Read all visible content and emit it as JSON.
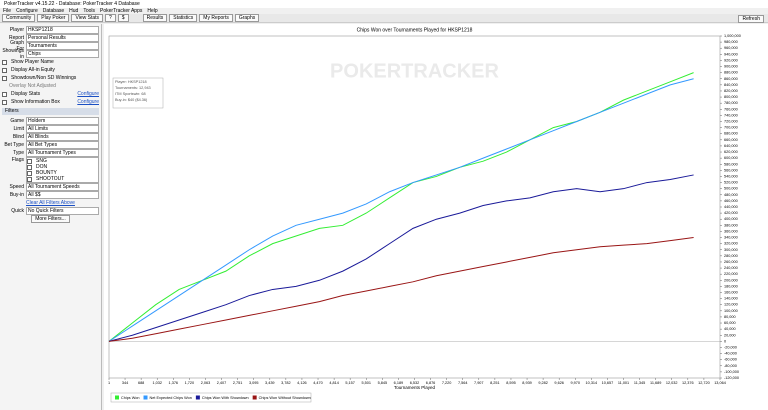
{
  "window": {
    "title": "PokerTracker v4.15.22 - Database: PokerTracker 4 Database"
  },
  "menu": [
    "File",
    "Configure",
    "Database",
    "Hud",
    "Tools",
    "PokerTracker Apps",
    "Help"
  ],
  "toolbar": {
    "left": [
      "Community",
      "Play Poker",
      "View Stats",
      "?",
      "$"
    ],
    "tabs": [
      "Results",
      "Statistics",
      "My Reports",
      "Graphs"
    ],
    "refresh": "Refresh"
  },
  "sidebar": {
    "player_label": "Player",
    "player": "HKSP1218",
    "report_label": "Report",
    "report": "Personal Results",
    "graph_for_label": "Graph For",
    "graph_for": "Tournaments",
    "showing_label": "Showings in",
    "showing": "Chips",
    "checks": [
      "Show Player Name",
      "Display All-in Equity",
      "Showdown/Non SD Winnings"
    ],
    "note": "Overlay Not Adjusted",
    "display_stats": "Display Stats",
    "show_info": "Show Information Box",
    "configure": "Configure",
    "filters": "Filters",
    "filter_rows": [
      {
        "label": "Game",
        "value": "Holdem"
      },
      {
        "label": "Limit",
        "value": "All Limits"
      },
      {
        "label": "Blind",
        "value": "All Blinds"
      },
      {
        "label": "Bet Type",
        "value": "All Bet Types"
      },
      {
        "label": "Type",
        "value": "All Tournament Types"
      }
    ],
    "flags_label": "Flags",
    "flags": [
      "SNG",
      "DON",
      "BOUNTY",
      "SHOOTOUT"
    ],
    "filter_rows2": [
      {
        "label": "Speed",
        "value": "All Tournament Speeds"
      },
      {
        "label": "Buy-in",
        "value": "All $$"
      }
    ],
    "clear": "Clear All Filters Above",
    "quick_label": "Quick",
    "quick": "No Quick Filters",
    "more": "More Filters..."
  },
  "chart_data": {
    "type": "line",
    "title": "Chips Won over Tournaments Played for HKSP1218",
    "watermark": "POKERTRACKER",
    "info_box": [
      "Player: HKSP1218",
      "Tournaments: 12,943",
      "ITM Sportswin: 68",
      "Buy-in: $40 ($4.36)"
    ],
    "x_label": "Tournaments Played",
    "grid": false,
    "x": [
      0,
      500,
      1000,
      1500,
      2000,
      2500,
      3000,
      3500,
      4000,
      4500,
      5000,
      5500,
      6000,
      6500,
      7000,
      7500,
      8000,
      8500,
      9000,
      9500,
      10000,
      10500,
      11000,
      11500,
      12000,
      12500
    ],
    "series": [
      {
        "name": "Chips Won",
        "color": "#33ee33",
        "values": [
          0,
          60000,
          120000,
          170000,
          200000,
          230000,
          280000,
          320000,
          345000,
          370000,
          380000,
          420000,
          470000,
          520000,
          540000,
          570000,
          590000,
          620000,
          660000,
          700000,
          720000,
          750000,
          790000,
          820000,
          850000,
          880000
        ]
      },
      {
        "name": "Net Expected Chips Won",
        "color": "#3399ff",
        "values": [
          0,
          50000,
          100000,
          150000,
          200000,
          250000,
          300000,
          345000,
          380000,
          400000,
          420000,
          450000,
          490000,
          520000,
          545000,
          570000,
          600000,
          630000,
          660000,
          690000,
          720000,
          750000,
          780000,
          810000,
          840000,
          860000
        ]
      },
      {
        "name": "Chips Won With Showdown",
        "color": "#1a1a99",
        "values": [
          0,
          20000,
          45000,
          70000,
          95000,
          120000,
          150000,
          170000,
          180000,
          200000,
          230000,
          270000,
          320000,
          370000,
          400000,
          420000,
          445000,
          460000,
          470000,
          490000,
          500000,
          490000,
          500000,
          520000,
          530000,
          545000
        ]
      },
      {
        "name": "Chips Won Without Showdown",
        "color": "#991515",
        "values": [
          0,
          10000,
          25000,
          40000,
          55000,
          70000,
          85000,
          100000,
          115000,
          130000,
          150000,
          165000,
          180000,
          195000,
          215000,
          230000,
          245000,
          260000,
          275000,
          290000,
          300000,
          310000,
          315000,
          320000,
          330000,
          340000
        ]
      }
    ],
    "xlim": [
      1,
      13064
    ],
    "xticks": [
      1,
      344,
      688,
      {
        "value": 1032,
        "label": "1,032"
      },
      {
        "value": 1376,
        "label": "1,376"
      },
      {
        "value": 1720,
        "label": "1,720"
      },
      {
        "value": 2063,
        "label": "2,063"
      },
      {
        "value": 2407,
        "label": "2,407"
      },
      {
        "value": 2751,
        "label": "2,751"
      },
      {
        "value": 3095,
        "label": "3,095"
      },
      {
        "value": 3439,
        "label": "3,439"
      },
      {
        "value": 3782,
        "label": "3,782"
      },
      {
        "value": 4126,
        "label": "4,126"
      },
      {
        "value": 4470,
        "label": "4,470"
      },
      {
        "value": 4814,
        "label": "4,814"
      },
      {
        "value": 5157,
        "label": "5,157"
      },
      {
        "value": 5501,
        "label": "5,501"
      },
      {
        "value": 5845,
        "label": "5,845"
      },
      {
        "value": 6189,
        "label": "6,189"
      },
      {
        "value": 6532,
        "label": "6,532"
      },
      {
        "value": 6876,
        "label": "6,876"
      },
      {
        "value": 7220,
        "label": "7,220"
      },
      {
        "value": 7564,
        "label": "7,564"
      },
      {
        "value": 7907,
        "label": "7,907"
      },
      {
        "value": 8251,
        "label": "8,251"
      },
      {
        "value": 8595,
        "label": "8,595"
      },
      {
        "value": 8939,
        "label": "8,939"
      },
      {
        "value": 9282,
        "label": "9,282"
      },
      {
        "value": 9626,
        "label": "9,626"
      },
      {
        "value": 9970,
        "label": "9,970"
      },
      {
        "value": 10314,
        "label": "10,314"
      },
      {
        "value": 10657,
        "label": "10,657"
      },
      {
        "value": 11001,
        "label": "11,001"
      },
      {
        "value": 11345,
        "label": "11,345"
      },
      {
        "value": 11689,
        "label": "11,689"
      },
      {
        "value": 12032,
        "label": "12,032"
      },
      {
        "value": 12376,
        "label": "12,376"
      },
      {
        "value": 12720,
        "label": "12,720"
      },
      {
        "value": 13064,
        "label": "13,064"
      }
    ],
    "ylim": [
      -120000,
      1000000
    ],
    "yticks": [
      {
        "value": -120000,
        "label": "-120,000"
      },
      {
        "value": -100000,
        "label": "-100,000"
      },
      {
        "value": -80000,
        "label": "-80,000"
      },
      {
        "value": -60000,
        "label": "-60,000"
      },
      {
        "value": -40000,
        "label": "-40,000"
      },
      {
        "value": -20000,
        "label": "-20,000"
      },
      0,
      {
        "value": 20000,
        "label": "20,000"
      },
      {
        "value": 40000,
        "label": "40,000"
      },
      {
        "value": 60000,
        "label": "60,000"
      },
      {
        "value": 80000,
        "label": "80,000"
      },
      {
        "value": 100000,
        "label": "100,000"
      },
      {
        "value": 120000,
        "label": "120,000"
      },
      {
        "value": 140000,
        "label": "140,000"
      },
      {
        "value": 160000,
        "label": "160,000"
      },
      {
        "value": 180000,
        "label": "180,000"
      },
      {
        "value": 200000,
        "label": "200,000"
      },
      {
        "value": 220000,
        "label": "220,000"
      },
      {
        "value": 240000,
        "label": "240,000"
      },
      {
        "value": 260000,
        "label": "260,000"
      },
      {
        "value": 280000,
        "label": "280,000"
      },
      {
        "value": 300000,
        "label": "300,000"
      },
      {
        "value": 320000,
        "label": "320,000"
      },
      {
        "value": 340000,
        "label": "340,000"
      },
      {
        "value": 360000,
        "label": "360,000"
      },
      {
        "value": 380000,
        "label": "380,000"
      },
      {
        "value": 400000,
        "label": "400,000"
      },
      {
        "value": 420000,
        "label": "420,000"
      },
      {
        "value": 440000,
        "label": "440,000"
      },
      {
        "value": 460000,
        "label": "460,000"
      },
      {
        "value": 480000,
        "label": "480,000"
      },
      {
        "value": 500000,
        "label": "500,000"
      },
      {
        "value": 520000,
        "label": "520,000"
      },
      {
        "value": 540000,
        "label": "540,000"
      },
      {
        "value": 560000,
        "label": "560,000"
      },
      {
        "value": 580000,
        "label": "580,000"
      },
      {
        "value": 600000,
        "label": "600,000"
      },
      {
        "value": 620000,
        "label": "620,000"
      },
      {
        "value": 640000,
        "label": "640,000"
      },
      {
        "value": 660000,
        "label": "660,000"
      },
      {
        "value": 680000,
        "label": "680,000"
      },
      {
        "value": 700000,
        "label": "700,000"
      },
      {
        "value": 720000,
        "label": "720,000"
      },
      {
        "value": 740000,
        "label": "740,000"
      },
      {
        "value": 760000,
        "label": "760,000"
      },
      {
        "value": 780000,
        "label": "780,000"
      },
      {
        "value": 800000,
        "label": "800,000"
      },
      {
        "value": 820000,
        "label": "820,000"
      },
      {
        "value": 840000,
        "label": "840,000"
      },
      {
        "value": 860000,
        "label": "860,000"
      },
      {
        "value": 880000,
        "label": "880,000"
      },
      {
        "value": 900000,
        "label": "900,000"
      },
      {
        "value": 920000,
        "label": "920,000"
      },
      {
        "value": 940000,
        "label": "940,000"
      },
      {
        "value": 960000,
        "label": "960,000"
      },
      {
        "value": 980000,
        "label": "980,000"
      },
      {
        "value": 1000000,
        "label": "1,000,000"
      }
    ]
  }
}
